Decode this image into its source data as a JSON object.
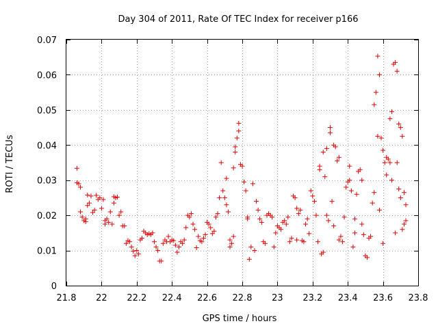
{
  "chart_data": {
    "type": "scatter",
    "title": "Day 304 of 2011, Rate Of TEC Index for receiver p166",
    "xlabel": "GPS time / hours",
    "ylabel": "ROTI / TECUs",
    "xlim": [
      21.8,
      23.8
    ],
    "ylim": [
      0,
      0.07
    ],
    "grid": true,
    "marker": "plus",
    "series_color": "#e00000",
    "xticks": [
      "21.8",
      "22",
      "22.2",
      "22.4",
      "22.6",
      "22.8",
      "23",
      "23.2",
      "23.4",
      "23.6",
      "23.8"
    ],
    "yticks": [
      "0",
      "0.01",
      "0.02",
      "0.03",
      "0.04",
      "0.05",
      "0.06",
      "0.07"
    ],
    "points": [
      [
        21.86,
        0.0334
      ],
      [
        21.86,
        0.0293
      ],
      [
        21.87,
        0.029
      ],
      [
        21.88,
        0.028
      ],
      [
        21.88,
        0.021
      ],
      [
        21.89,
        0.0195
      ],
      [
        21.9,
        0.0185
      ],
      [
        21.91,
        0.0182
      ],
      [
        21.91,
        0.019
      ],
      [
        21.92,
        0.0228
      ],
      [
        21.92,
        0.0258
      ],
      [
        21.93,
        0.0235
      ],
      [
        21.94,
        0.0255
      ],
      [
        21.95,
        0.0208
      ],
      [
        21.96,
        0.0215
      ],
      [
        21.97,
        0.0257
      ],
      [
        21.98,
        0.0245
      ],
      [
        21.99,
        0.025
      ],
      [
        22.0,
        0.022
      ],
      [
        22.01,
        0.0245
      ],
      [
        22.02,
        0.0185
      ],
      [
        22.02,
        0.0175
      ],
      [
        22.03,
        0.019
      ],
      [
        22.04,
        0.018
      ],
      [
        22.05,
        0.021
      ],
      [
        22.06,
        0.0175
      ],
      [
        22.07,
        0.0235
      ],
      [
        22.07,
        0.0253
      ],
      [
        22.08,
        0.025
      ],
      [
        22.09,
        0.0252
      ],
      [
        22.1,
        0.02
      ],
      [
        22.11,
        0.021
      ],
      [
        22.12,
        0.017
      ],
      [
        22.13,
        0.017
      ],
      [
        22.14,
        0.012
      ],
      [
        22.15,
        0.0128
      ],
      [
        22.16,
        0.0125
      ],
      [
        22.17,
        0.011
      ],
      [
        22.18,
        0.0098
      ],
      [
        22.19,
        0.0085
      ],
      [
        22.2,
        0.01
      ],
      [
        22.21,
        0.009
      ],
      [
        22.22,
        0.013
      ],
      [
        22.23,
        0.0135
      ],
      [
        22.24,
        0.0155
      ],
      [
        22.25,
        0.015
      ],
      [
        22.26,
        0.0145
      ],
      [
        22.27,
        0.0148
      ],
      [
        22.28,
        0.0145
      ],
      [
        22.29,
        0.015
      ],
      [
        22.3,
        0.0125
      ],
      [
        22.31,
        0.011
      ],
      [
        22.32,
        0.01
      ],
      [
        22.33,
        0.007
      ],
      [
        22.34,
        0.007
      ],
      [
        22.35,
        0.012
      ],
      [
        22.36,
        0.013
      ],
      [
        22.37,
        0.0125
      ],
      [
        22.38,
        0.014
      ],
      [
        22.39,
        0.0125
      ],
      [
        22.4,
        0.013
      ],
      [
        22.41,
        0.0128
      ],
      [
        22.42,
        0.0115
      ],
      [
        22.43,
        0.0095
      ],
      [
        22.44,
        0.011
      ],
      [
        22.45,
        0.0125
      ],
      [
        22.46,
        0.012
      ],
      [
        22.47,
        0.013
      ],
      [
        22.48,
        0.0165
      ],
      [
        22.49,
        0.02
      ],
      [
        22.5,
        0.0195
      ],
      [
        22.51,
        0.0205
      ],
      [
        22.52,
        0.0175
      ],
      [
        22.53,
        0.016
      ],
      [
        22.54,
        0.0108
      ],
      [
        22.55,
        0.014
      ],
      [
        22.56,
        0.0128
      ],
      [
        22.57,
        0.0125
      ],
      [
        22.58,
        0.0135
      ],
      [
        22.59,
        0.0145
      ],
      [
        22.6,
        0.018
      ],
      [
        22.61,
        0.0175
      ],
      [
        22.62,
        0.0165
      ],
      [
        22.63,
        0.0148
      ],
      [
        22.64,
        0.0155
      ],
      [
        22.65,
        0.0195
      ],
      [
        22.66,
        0.0205
      ],
      [
        22.67,
        0.025
      ],
      [
        22.68,
        0.035
      ],
      [
        22.69,
        0.027
      ],
      [
        22.7,
        0.025
      ],
      [
        22.71,
        0.023
      ],
      [
        22.71,
        0.0305
      ],
      [
        22.72,
        0.021
      ],
      [
        22.73,
        0.011
      ],
      [
        22.73,
        0.013
      ],
      [
        22.74,
        0.012
      ],
      [
        22.75,
        0.0335
      ],
      [
        22.75,
        0.014
      ],
      [
        22.76,
        0.038
      ],
      [
        22.76,
        0.0395
      ],
      [
        22.77,
        0.042
      ],
      [
        22.78,
        0.0462
      ],
      [
        22.78,
        0.044
      ],
      [
        22.79,
        0.0345
      ],
      [
        22.8,
        0.034
      ],
      [
        22.81,
        0.0295
      ],
      [
        22.82,
        0.027
      ],
      [
        22.83,
        0.019
      ],
      [
        22.83,
        0.0195
      ],
      [
        22.84,
        0.0075
      ],
      [
        22.85,
        0.011
      ],
      [
        22.86,
        0.029
      ],
      [
        22.87,
        0.01
      ],
      [
        22.88,
        0.024
      ],
      [
        22.89,
        0.0215
      ],
      [
        22.9,
        0.019
      ],
      [
        22.91,
        0.018
      ],
      [
        22.92,
        0.0125
      ],
      [
        22.93,
        0.012
      ],
      [
        22.94,
        0.02
      ],
      [
        22.95,
        0.0205
      ],
      [
        22.96,
        0.02
      ],
      [
        22.97,
        0.0195
      ],
      [
        22.98,
        0.011
      ],
      [
        22.99,
        0.015
      ],
      [
        23.0,
        0.017
      ],
      [
        23.01,
        0.0165
      ],
      [
        23.02,
        0.016
      ],
      [
        23.03,
        0.018
      ],
      [
        23.04,
        0.0185
      ],
      [
        23.05,
        0.0175
      ],
      [
        23.06,
        0.0195
      ],
      [
        23.07,
        0.0125
      ],
      [
        23.08,
        0.0135
      ],
      [
        23.09,
        0.0255
      ],
      [
        23.1,
        0.025
      ],
      [
        23.11,
        0.022
      ],
      [
        23.11,
        0.013
      ],
      [
        23.12,
        0.0205
      ],
      [
        23.13,
        0.0215
      ],
      [
        23.14,
        0.0128
      ],
      [
        23.15,
        0.0125
      ],
      [
        23.16,
        0.0175
      ],
      [
        23.17,
        0.019
      ],
      [
        23.18,
        0.0148
      ],
      [
        23.19,
        0.027
      ],
      [
        23.2,
        0.0255
      ],
      [
        23.21,
        0.024
      ],
      [
        23.22,
        0.02
      ],
      [
        23.23,
        0.0125
      ],
      [
        23.24,
        0.033
      ],
      [
        23.24,
        0.034
      ],
      [
        23.25,
        0.009
      ],
      [
        23.26,
        0.038
      ],
      [
        23.26,
        0.0095
      ],
      [
        23.27,
        0.031
      ],
      [
        23.28,
        0.039
      ],
      [
        23.28,
        0.02
      ],
      [
        23.29,
        0.0185
      ],
      [
        23.3,
        0.0435
      ],
      [
        23.3,
        0.045
      ],
      [
        23.31,
        0.024
      ],
      [
        23.32,
        0.04
      ],
      [
        23.32,
        0.017
      ],
      [
        23.33,
        0.0395
      ],
      [
        23.34,
        0.0355
      ],
      [
        23.35,
        0.0365
      ],
      [
        23.35,
        0.013
      ],
      [
        23.36,
        0.014
      ],
      [
        23.37,
        0.0125
      ],
      [
        23.38,
        0.0195
      ],
      [
        23.39,
        0.028
      ],
      [
        23.4,
        0.0295
      ],
      [
        23.41,
        0.034
      ],
      [
        23.41,
        0.03
      ],
      [
        23.42,
        0.027
      ],
      [
        23.43,
        0.011
      ],
      [
        23.44,
        0.015
      ],
      [
        23.44,
        0.019
      ],
      [
        23.45,
        0.026
      ],
      [
        23.46,
        0.0325
      ],
      [
        23.47,
        0.033
      ],
      [
        23.48,
        0.03
      ],
      [
        23.48,
        0.0175
      ],
      [
        23.49,
        0.0145
      ],
      [
        23.5,
        0.0085
      ],
      [
        23.51,
        0.008
      ],
      [
        23.52,
        0.0135
      ],
      [
        23.53,
        0.014
      ],
      [
        23.54,
        0.0235
      ],
      [
        23.55,
        0.0265
      ],
      [
        23.55,
        0.0515
      ],
      [
        23.56,
        0.055
      ],
      [
        23.57,
        0.0653
      ],
      [
        23.57,
        0.0425
      ],
      [
        23.58,
        0.06
      ],
      [
        23.58,
        0.0215
      ],
      [
        23.59,
        0.042
      ],
      [
        23.6,
        0.0385
      ],
      [
        23.6,
        0.012
      ],
      [
        23.61,
        0.035
      ],
      [
        23.62,
        0.0365
      ],
      [
        23.62,
        0.0315
      ],
      [
        23.63,
        0.036
      ],
      [
        23.64,
        0.035
      ],
      [
        23.64,
        0.0475
      ],
      [
        23.65,
        0.0495
      ],
      [
        23.65,
        0.03
      ],
      [
        23.66,
        0.063
      ],
      [
        23.67,
        0.0635
      ],
      [
        23.67,
        0.015
      ],
      [
        23.68,
        0.061
      ],
      [
        23.68,
        0.035
      ],
      [
        23.69,
        0.0275
      ],
      [
        23.69,
        0.046
      ],
      [
        23.7,
        0.045
      ],
      [
        23.7,
        0.025
      ],
      [
        23.71,
        0.0425
      ],
      [
        23.71,
        0.016
      ],
      [
        23.72,
        0.0265
      ],
      [
        23.72,
        0.0175
      ],
      [
        23.73,
        0.023
      ],
      [
        23.73,
        0.0185
      ]
    ]
  }
}
